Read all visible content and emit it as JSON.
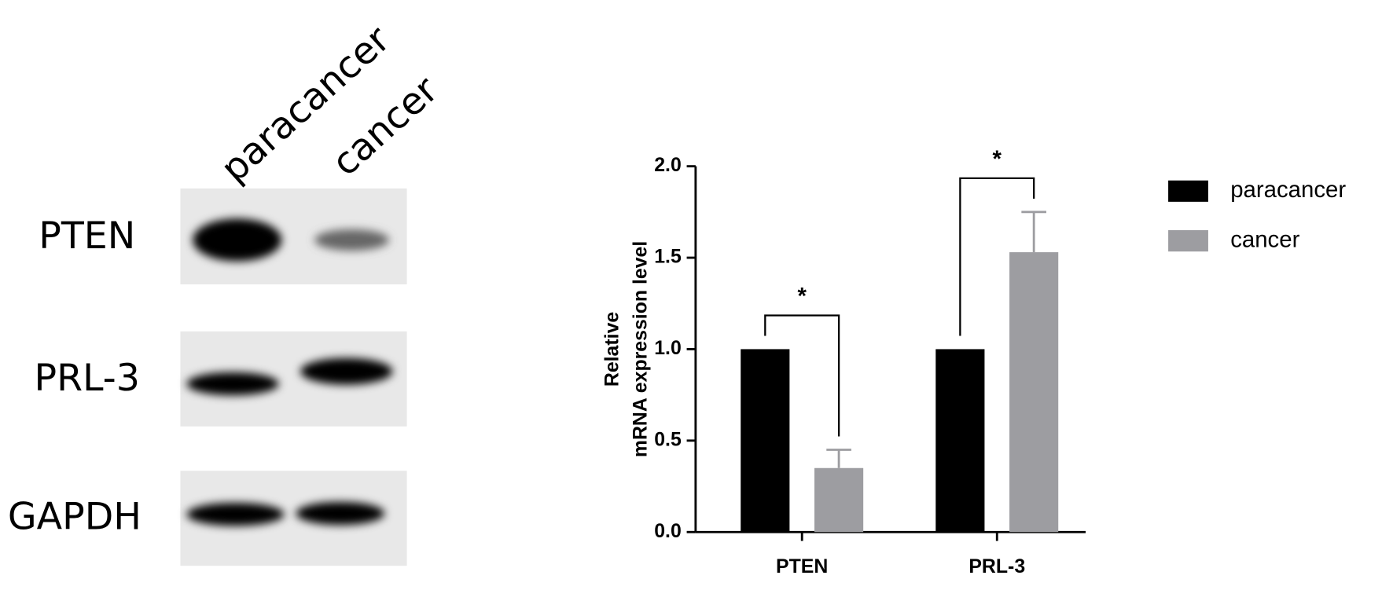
{
  "blot": {
    "lanes": [
      "paracancer",
      "cancer"
    ],
    "rows": [
      "PTEN",
      "PRL-3",
      "GAPDH"
    ]
  },
  "chart_data": {
    "type": "bar",
    "ylabel": [
      "Relative",
      "mRNA expression level"
    ],
    "categories": [
      "PTEN",
      "PRL-3"
    ],
    "series": [
      {
        "name": "paracancer",
        "color": "#000000",
        "values": [
          1.0,
          1.0
        ]
      },
      {
        "name": "cancer",
        "color": "#9d9da1",
        "values": [
          0.35,
          1.53
        ],
        "errors": [
          0.1,
          0.22
        ]
      }
    ],
    "ylim": [
      0,
      2
    ],
    "yticks": [
      {
        "value": 0,
        "label": "0.0"
      },
      {
        "value": 0.5,
        "label": "0.5"
      },
      {
        "value": 1,
        "label": "1.0"
      },
      {
        "value": 1.5,
        "label": "1.5"
      },
      {
        "value": 2,
        "label": "2.0"
      }
    ],
    "annotations": [
      "*",
      "*"
    ]
  }
}
